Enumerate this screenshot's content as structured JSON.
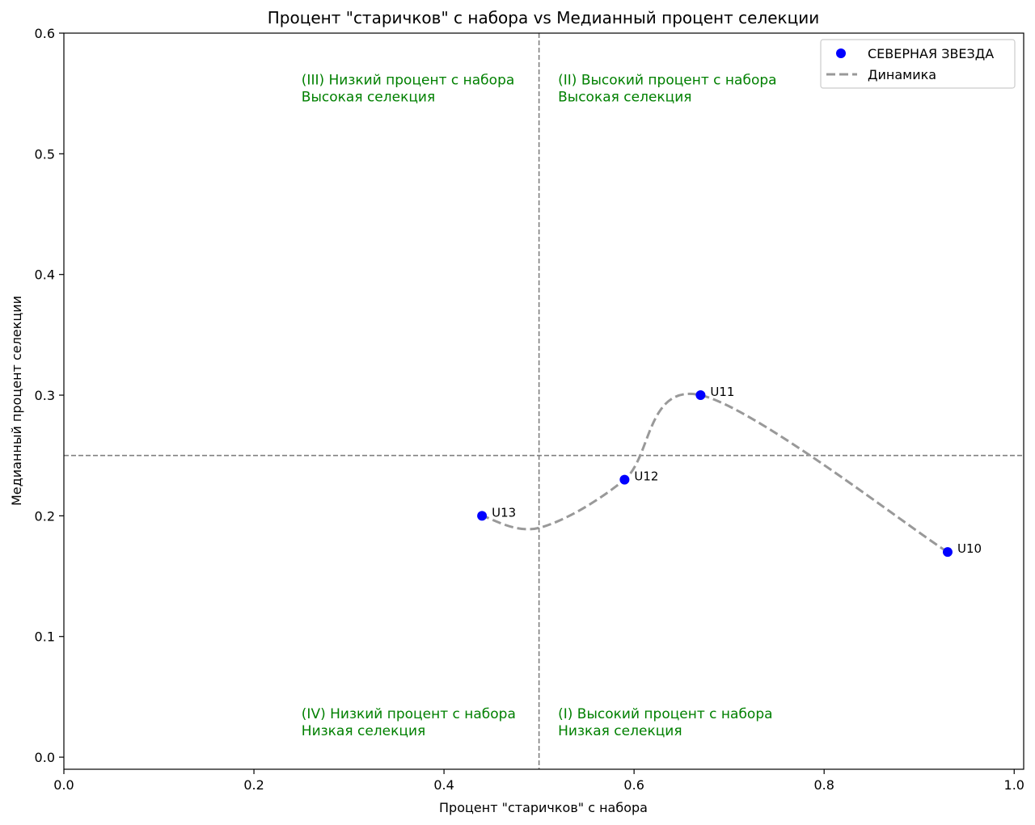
{
  "chart_data": {
    "type": "scatter",
    "title": "Процент \"старичков\" с набора vs Медианный процент селекции",
    "xlabel": "Процент \"старичков\" с набора",
    "ylabel": "Медианный процент селекции",
    "xlim": [
      0.0,
      1.01
    ],
    "ylim": [
      -0.01,
      0.6
    ],
    "x_ticks": [
      "0.0",
      "0.2",
      "0.4",
      "0.6",
      "0.8",
      "1.0"
    ],
    "y_ticks": [
      "0.0",
      "0.1",
      "0.2",
      "0.3",
      "0.4",
      "0.5",
      "0.6"
    ],
    "grid": false,
    "legend_position": "top-right",
    "series": [
      {
        "name": "СЕВЕРНАЯ ЗВЕЗДА",
        "kind": "scatter",
        "color": "#0000ff",
        "points": [
          {
            "label": "U10",
            "x": 0.93,
            "y": 0.17
          },
          {
            "label": "U11",
            "x": 0.67,
            "y": 0.3
          },
          {
            "label": "U12",
            "x": 0.59,
            "y": 0.23
          },
          {
            "label": "U13",
            "x": 0.44,
            "y": 0.2
          }
        ]
      },
      {
        "name": "Динамика",
        "kind": "line",
        "style": "dashed",
        "color": "#999999",
        "x": [
          0.93,
          0.67,
          0.59,
          0.5,
          0.44
        ],
        "y": [
          0.17,
          0.3,
          0.23,
          0.19,
          0.2
        ]
      }
    ],
    "reference_lines": {
      "vertical_x": 0.5,
      "horizontal_y": 0.25,
      "color": "#808080"
    },
    "quadrant_color": "#008000",
    "quadrants": [
      {
        "id": "III",
        "lines": [
          "(III) Низкий процент с набора",
          "Высокая селекция"
        ]
      },
      {
        "id": "II",
        "lines": [
          "(II) Высокий процент с набора",
          "Высокая селекция"
        ]
      },
      {
        "id": "IV",
        "lines": [
          "(IV) Низкий процент с набора",
          "Низкая селекция"
        ]
      },
      {
        "id": "I",
        "lines": [
          "(I) Высокий процент с набора",
          "Низкая селекция"
        ]
      }
    ]
  }
}
